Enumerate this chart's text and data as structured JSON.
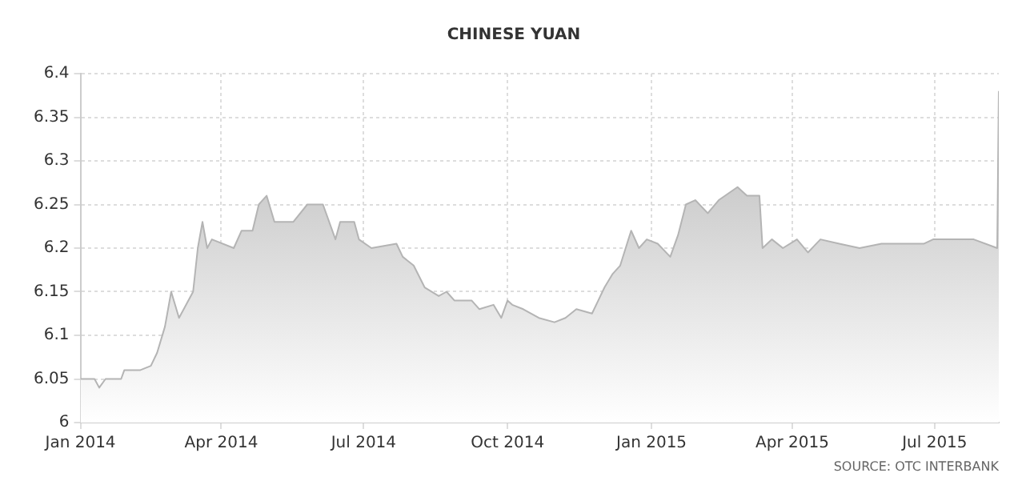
{
  "chart_data": {
    "type": "area",
    "title": "CHINESE YUAN",
    "annotations": [
      "SOURCE: OTC INTERBANK"
    ],
    "x": [
      "2014-01-01",
      "2014-01-10",
      "2014-01-13",
      "2014-01-17",
      "2014-01-27",
      "2014-01-29",
      "2014-02-08",
      "2014-02-15",
      "2014-02-19",
      "2014-02-24",
      "2014-02-28",
      "2014-03-05",
      "2014-03-14",
      "2014-03-17",
      "2014-03-20",
      "2014-03-23",
      "2014-03-26",
      "2014-04-09",
      "2014-04-14",
      "2014-04-21",
      "2014-04-25",
      "2014-04-30",
      "2014-05-05",
      "2014-05-17",
      "2014-05-26",
      "2014-06-05",
      "2014-06-13",
      "2014-06-16",
      "2014-06-25",
      "2014-06-28",
      "2014-07-06",
      "2014-07-22",
      "2014-07-26",
      "2014-08-02",
      "2014-08-09",
      "2014-08-18",
      "2014-08-23",
      "2014-08-28",
      "2014-09-08",
      "2014-09-13",
      "2014-09-22",
      "2014-09-27",
      "2014-10-01",
      "2014-10-04",
      "2014-10-11",
      "2014-10-21",
      "2014-10-31",
      "2014-11-07",
      "2014-11-14",
      "2014-11-24",
      "2014-11-28",
      "2014-12-02",
      "2014-12-07",
      "2014-12-12",
      "2014-12-19",
      "2014-12-24",
      "2014-12-29",
      "2015-01-05",
      "2015-01-13",
      "2015-01-18",
      "2015-01-23",
      "2015-01-29",
      "2015-02-06",
      "2015-02-13",
      "2015-02-25",
      "2015-03-03",
      "2015-03-11",
      "2015-03-13",
      "2015-03-19",
      "2015-03-26",
      "2015-04-04",
      "2015-04-11",
      "2015-04-19",
      "2015-05-01",
      "2015-05-14",
      "2015-05-28",
      "2015-06-10",
      "2015-06-24",
      "2015-06-30",
      "2015-07-14",
      "2015-07-26",
      "2015-08-10",
      "2015-08-11"
    ],
    "series": [
      {
        "color": "#b4b4b4",
        "values": [
          6.05,
          6.05,
          6.04,
          6.05,
          6.05,
          6.06,
          6.06,
          6.065,
          6.08,
          6.11,
          6.15,
          6.12,
          6.15,
          6.2,
          6.23,
          6.2,
          6.21,
          6.2,
          6.22,
          6.22,
          6.25,
          6.26,
          6.23,
          6.23,
          6.25,
          6.25,
          6.21,
          6.23,
          6.23,
          6.21,
          6.2,
          6.205,
          6.19,
          6.18,
          6.155,
          6.145,
          6.15,
          6.14,
          6.14,
          6.13,
          6.135,
          6.12,
          6.14,
          6.135,
          6.13,
          6.12,
          6.115,
          6.12,
          6.13,
          6.125,
          6.14,
          6.155,
          6.17,
          6.18,
          6.22,
          6.2,
          6.21,
          6.205,
          6.19,
          6.215,
          6.25,
          6.255,
          6.24,
          6.255,
          6.27,
          6.26,
          6.26,
          6.2,
          6.21,
          6.2,
          6.21,
          6.195,
          6.21,
          6.205,
          6.2,
          6.205,
          6.205,
          6.205,
          6.21,
          6.21,
          6.21,
          6.2,
          6.38
        ]
      }
    ],
    "xlim": [
      "2014-01-01",
      "2015-08-11"
    ],
    "xticks": [
      {
        "value": "2014-01-01",
        "label": "Jan 2014"
      },
      {
        "value": "2014-04-01",
        "label": "Apr 2014"
      },
      {
        "value": "2014-07-01",
        "label": "Jul 2014"
      },
      {
        "value": "2014-10-01",
        "label": "Oct 2014"
      },
      {
        "value": "2015-01-01",
        "label": "Jan 2015"
      },
      {
        "value": "2015-04-01",
        "label": "Apr 2015"
      },
      {
        "value": "2015-07-01",
        "label": "Jul 2015"
      }
    ],
    "ylim": [
      6,
      6.4
    ],
    "yticks": [
      6,
      6.05,
      6.1,
      6.15,
      6.2,
      6.25,
      6.3,
      6.35,
      6.4
    ],
    "grid": true,
    "legend": false,
    "marker": "none"
  }
}
